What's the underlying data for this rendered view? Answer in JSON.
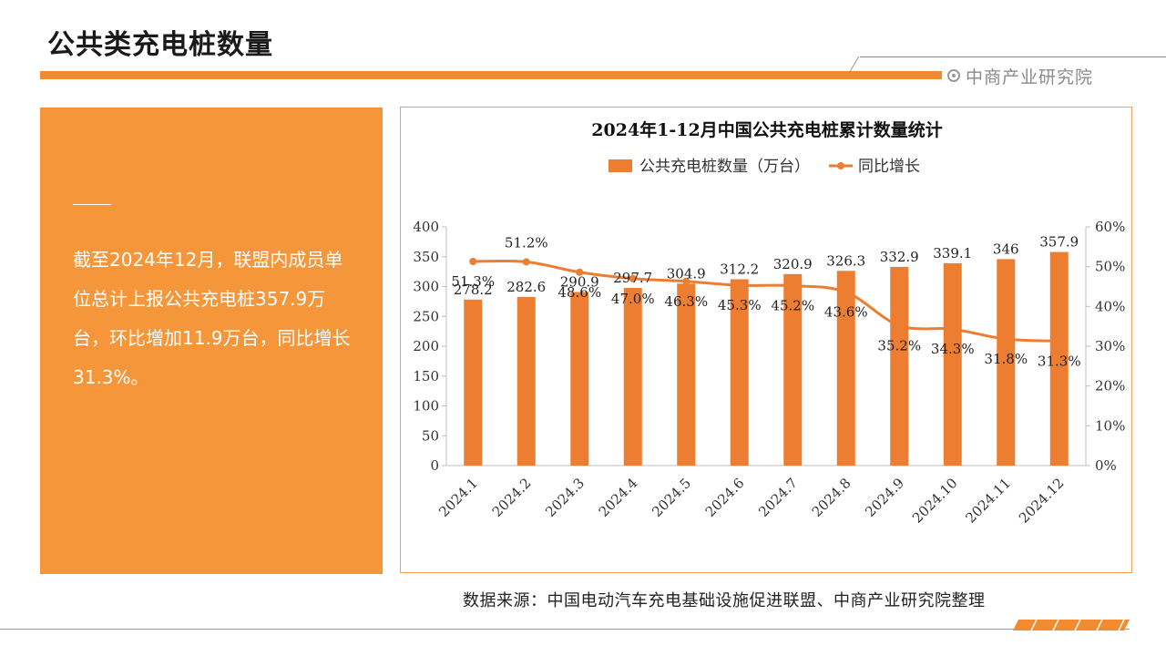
{
  "header": {
    "title": "公共类充电桩数量",
    "brand": "中商产业研究院"
  },
  "summary": {
    "text": "截至2024年12月，联盟内成员单位总计上报公共充电桩357.9万台，环比增加11.9万台，同比增长31.3%。"
  },
  "source": "数据来源：中国电动汽车充电基础设施促进联盟、中商产业研究院整理",
  "colors": {
    "accent": "#f28a30",
    "bar": "#ed7d31",
    "panel": "#f6963a"
  },
  "chart_data": {
    "type": "bar",
    "title": "2024年1-12月中国公共充电桩累计数量统计",
    "categories": [
      "2024.1",
      "2024.2",
      "2024.3",
      "2024.4",
      "2024.5",
      "2024.6",
      "2024.7",
      "2024.8",
      "2024.9",
      "2024.10",
      "2024.11",
      "2024.12"
    ],
    "series": [
      {
        "name": "公共充电桩数量（万台）",
        "type": "bar",
        "axis": "left",
        "values": [
          278.2,
          282.6,
          290.9,
          297.7,
          304.9,
          312.2,
          320.9,
          326.3,
          332.9,
          339.1,
          346,
          357.9
        ],
        "labels": [
          "278.2",
          "282.6",
          "290.9",
          "297.7",
          "304.9",
          "312.2",
          "320.9",
          "326.3",
          "332.9",
          "339.1",
          "346",
          "357.9"
        ]
      },
      {
        "name": "同比增长",
        "type": "line",
        "axis": "right",
        "values": [
          51.3,
          51.2,
          48.6,
          47.0,
          46.3,
          45.3,
          45.2,
          43.6,
          35.2,
          34.3,
          31.8,
          31.3
        ],
        "labels": [
          "51.3%",
          "51.2%",
          "48.6%",
          "47.0%",
          "46.3%",
          "45.3%",
          "45.2%",
          "43.6%",
          "35.2%",
          "34.3%",
          "31.8%",
          "31.3%"
        ]
      }
    ],
    "y_left": {
      "min": 0,
      "max": 400,
      "ticks": [
        "0",
        "50",
        "100",
        "150",
        "200",
        "250",
        "300",
        "350",
        "400"
      ]
    },
    "y_right": {
      "min": 0,
      "max": 60,
      "ticks": [
        "0%",
        "10%",
        "20%",
        "30%",
        "40%",
        "50%",
        "60%"
      ]
    },
    "legend_position": "top",
    "grid": false
  }
}
